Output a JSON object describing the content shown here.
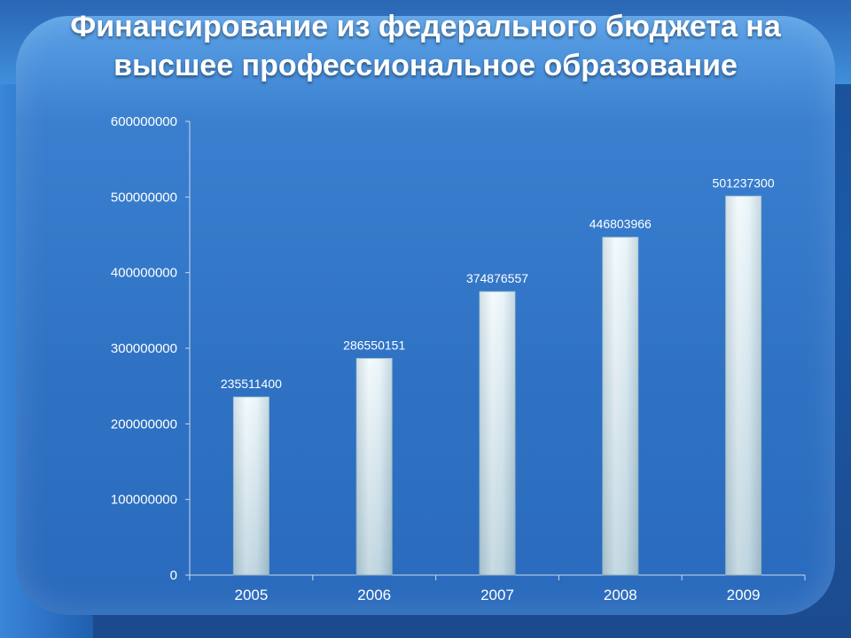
{
  "title_line1": "Финансирование из федерального бюджета на",
  "title_line2": "высшее профессиональное образование",
  "chart_data": {
    "type": "bar",
    "categories": [
      "2005",
      "2006",
      "2007",
      "2008",
      "2009"
    ],
    "values": [
      235511400,
      286550151,
      374876557,
      446803966,
      501237300
    ],
    "data_labels": [
      "235511400",
      "286550151",
      "374876557",
      "446803966",
      "501237300"
    ],
    "ylim": [
      0,
      600000000
    ],
    "yticks": [
      0,
      100000000,
      200000000,
      300000000,
      400000000,
      500000000,
      600000000
    ],
    "ytick_labels": [
      "0",
      "100000000",
      "200000000",
      "300000000",
      "400000000",
      "500000000",
      "600000000"
    ],
    "grid": false,
    "legend": "none"
  }
}
